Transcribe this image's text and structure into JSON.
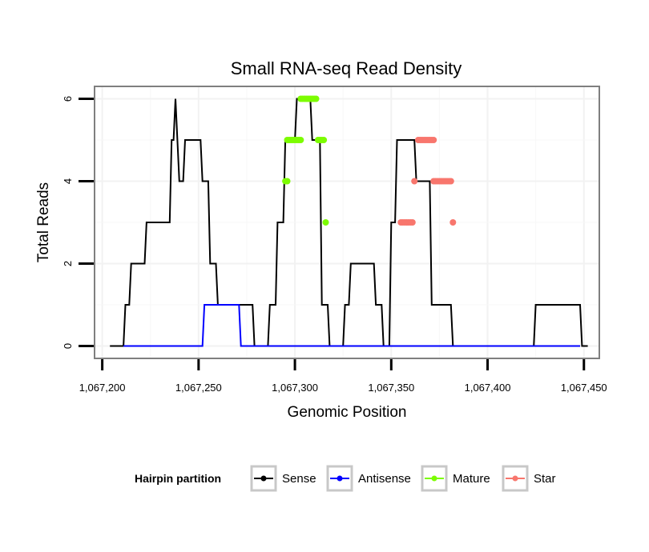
{
  "chart_data": {
    "type": "line",
    "title": "Small RNA-seq Read Density",
    "xlabel": "Genomic Position",
    "ylabel": "Total Reads",
    "xlim": [
      1067196,
      1067458
    ],
    "ylim": [
      -0.3,
      6.3
    ],
    "x_ticks": [
      1067200,
      1067250,
      1067300,
      1067350,
      1067400,
      1067450
    ],
    "x_tick_labels": [
      "1,067,200",
      "1,067,250",
      "1,067,300",
      "1,067,350",
      "1,067,400",
      "1,067,450"
    ],
    "y_ticks": [
      0,
      2,
      4,
      6
    ],
    "y_tick_labels": [
      "0",
      "2",
      "4",
      "6"
    ],
    "legend": {
      "title": "Hairpin partition",
      "position": "bottom",
      "entries": [
        {
          "name": "Sense",
          "color": "#000000"
        },
        {
          "name": "Antisense",
          "color": "#0000ff"
        },
        {
          "name": "Mature",
          "color": "#7cfc00"
        },
        {
          "name": "Star",
          "color": "#f8766d"
        }
      ]
    },
    "series": [
      {
        "name": "Sense",
        "color": "#000000",
        "style": "line",
        "x": [
          1067204,
          1067211,
          1067212,
          1067214,
          1067215,
          1067222,
          1067223,
          1067235,
          1067236,
          1067237,
          1067238,
          1067239,
          1067240,
          1067242,
          1067243,
          1067251,
          1067252,
          1067255,
          1067256,
          1067259,
          1067260,
          1067262,
          1067263,
          1067278,
          1067279,
          1067286,
          1067287,
          1067290,
          1067291,
          1067294,
          1067295,
          1067300,
          1067301,
          1067308,
          1067309,
          1067313,
          1067314,
          1067317,
          1067318,
          1067319,
          1067320,
          1067325,
          1067326,
          1067328,
          1067329,
          1067341,
          1067342,
          1067345,
          1067346,
          1067349,
          1067350,
          1067352,
          1067353,
          1067362,
          1067363,
          1067370,
          1067371,
          1067381,
          1067382,
          1067385,
          1067386,
          1067388,
          1067389,
          1067424,
          1067425,
          1067448,
          1067449,
          1067452
        ],
        "y": [
          0,
          0,
          1,
          1,
          2,
          2,
          3,
          3,
          5,
          5,
          6,
          5,
          4,
          4,
          5,
          5,
          4,
          4,
          2,
          2,
          1,
          1,
          1,
          1,
          0,
          0,
          1,
          1,
          3,
          3,
          5,
          5,
          6,
          6,
          5,
          5,
          1,
          1,
          0,
          0,
          0,
          0,
          1,
          1,
          2,
          2,
          1,
          1,
          0,
          0,
          3,
          3,
          5,
          5,
          4,
          4,
          1,
          1,
          0,
          0,
          0,
          0,
          0,
          0,
          1,
          1,
          0,
          0
        ]
      },
      {
        "name": "Antisense",
        "color": "#0000ff",
        "style": "line",
        "x": [
          1067211,
          1067252,
          1067253,
          1067271,
          1067272,
          1067448
        ],
        "y": [
          0,
          0,
          1,
          1,
          0,
          0
        ]
      },
      {
        "name": "Mature",
        "color": "#7cfc00",
        "style": "points",
        "points": [
          [
            1067295,
            4
          ],
          [
            1067296,
            4
          ],
          [
            1067296,
            5
          ],
          [
            1067297,
            5
          ],
          [
            1067298,
            5
          ],
          [
            1067299,
            5
          ],
          [
            1067300,
            5
          ],
          [
            1067301,
            5
          ],
          [
            1067302,
            5
          ],
          [
            1067303,
            5
          ],
          [
            1067303,
            6
          ],
          [
            1067304,
            6
          ],
          [
            1067305,
            6
          ],
          [
            1067306,
            6
          ],
          [
            1067307,
            6
          ],
          [
            1067308,
            6
          ],
          [
            1067309,
            6
          ],
          [
            1067310,
            6
          ],
          [
            1067311,
            6
          ],
          [
            1067312,
            5
          ],
          [
            1067313,
            5
          ],
          [
            1067314,
            5
          ],
          [
            1067315,
            5
          ],
          [
            1067316,
            3
          ]
        ]
      },
      {
        "name": "Star",
        "color": "#f8766d",
        "style": "points",
        "points": [
          [
            1067355,
            3
          ],
          [
            1067356,
            3
          ],
          [
            1067357,
            3
          ],
          [
            1067358,
            3
          ],
          [
            1067359,
            3
          ],
          [
            1067360,
            3
          ],
          [
            1067361,
            3
          ],
          [
            1067362,
            4
          ],
          [
            1067364,
            5
          ],
          [
            1067365,
            5
          ],
          [
            1067366,
            5
          ],
          [
            1067367,
            5
          ],
          [
            1067368,
            5
          ],
          [
            1067369,
            5
          ],
          [
            1067370,
            5
          ],
          [
            1067371,
            5
          ],
          [
            1067372,
            5
          ],
          [
            1067372,
            4
          ],
          [
            1067373,
            4
          ],
          [
            1067374,
            4
          ],
          [
            1067375,
            4
          ],
          [
            1067376,
            4
          ],
          [
            1067377,
            4
          ],
          [
            1067378,
            4
          ],
          [
            1067379,
            4
          ],
          [
            1067380,
            4
          ],
          [
            1067381,
            4
          ],
          [
            1067382,
            3
          ]
        ]
      }
    ]
  }
}
